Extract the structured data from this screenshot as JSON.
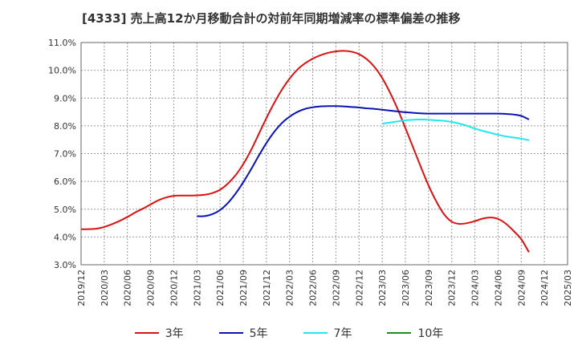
{
  "chart_data": {
    "type": "line",
    "title": "[4333]  売上高12か月移動合計の対前年同期増減率の標準偏差の推移",
    "ylim": [
      3.0,
      11.0
    ],
    "yticks": [
      "3.0%",
      "4.0%",
      "5.0%",
      "6.0%",
      "7.0%",
      "8.0%",
      "9.0%",
      "10.0%",
      "11.0%"
    ],
    "xticks": [
      "2019/12",
      "2020/03",
      "2020/06",
      "2020/09",
      "2020/12",
      "2021/03",
      "2021/06",
      "2021/09",
      "2021/12",
      "2022/03",
      "2022/06",
      "2022/09",
      "2022/12",
      "2023/03",
      "2023/06",
      "2023/09",
      "2023/12",
      "2024/03",
      "2024/06",
      "2024/09",
      "2024/12",
      "2025/03"
    ],
    "grid": true,
    "legend_position": "bottom",
    "series": [
      {
        "name": "3年",
        "color": "#dd1111",
        "values": [
          [
            "2019/12",
            4.28
          ],
          [
            "2020/01",
            4.28
          ],
          [
            "2020/02",
            4.3
          ],
          [
            "2020/03",
            4.36
          ],
          [
            "2020/04",
            4.46
          ],
          [
            "2020/05",
            4.58
          ],
          [
            "2020/06",
            4.72
          ],
          [
            "2020/07",
            4.88
          ],
          [
            "2020/08",
            5.02
          ],
          [
            "2020/09",
            5.17
          ],
          [
            "2020/10",
            5.32
          ],
          [
            "2020/11",
            5.42
          ],
          [
            "2020/12",
            5.48
          ],
          [
            "2021/01",
            5.49
          ],
          [
            "2021/02",
            5.49
          ],
          [
            "2021/03",
            5.5
          ],
          [
            "2021/04",
            5.52
          ],
          [
            "2021/05",
            5.58
          ],
          [
            "2021/06",
            5.7
          ],
          [
            "2021/07",
            5.92
          ],
          [
            "2021/08",
            6.22
          ],
          [
            "2021/09",
            6.62
          ],
          [
            "2021/10",
            7.12
          ],
          [
            "2021/11",
            7.7
          ],
          [
            "2021/12",
            8.28
          ],
          [
            "2022/01",
            8.82
          ],
          [
            "2022/02",
            9.3
          ],
          [
            "2022/03",
            9.7
          ],
          [
            "2022/04",
            10.02
          ],
          [
            "2022/05",
            10.25
          ],
          [
            "2022/06",
            10.42
          ],
          [
            "2022/07",
            10.54
          ],
          [
            "2022/08",
            10.63
          ],
          [
            "2022/09",
            10.68
          ],
          [
            "2022/10",
            10.7
          ],
          [
            "2022/11",
            10.67
          ],
          [
            "2022/12",
            10.58
          ],
          [
            "2023/01",
            10.4
          ],
          [
            "2023/02",
            10.12
          ],
          [
            "2023/03",
            9.72
          ],
          [
            "2023/04",
            9.2
          ],
          [
            "2023/05",
            8.6
          ],
          [
            "2023/06",
            7.92
          ],
          [
            "2023/07",
            7.22
          ],
          [
            "2023/08",
            6.52
          ],
          [
            "2023/09",
            5.85
          ],
          [
            "2023/10",
            5.28
          ],
          [
            "2023/11",
            4.82
          ],
          [
            "2023/12",
            4.55
          ],
          [
            "2024/01",
            4.47
          ],
          [
            "2024/02",
            4.5
          ],
          [
            "2024/03",
            4.57
          ],
          [
            "2024/04",
            4.66
          ],
          [
            "2024/05",
            4.7
          ],
          [
            "2024/06",
            4.65
          ],
          [
            "2024/07",
            4.48
          ],
          [
            "2024/08",
            4.22
          ],
          [
            "2024/09",
            3.92
          ],
          [
            "2024/10",
            3.45
          ]
        ]
      },
      {
        "name": "5年",
        "color": "#0a14b4",
        "values": [
          [
            "2021/03",
            4.75
          ],
          [
            "2021/04",
            4.75
          ],
          [
            "2021/05",
            4.82
          ],
          [
            "2021/06",
            4.97
          ],
          [
            "2021/07",
            5.22
          ],
          [
            "2021/08",
            5.56
          ],
          [
            "2021/09",
            5.97
          ],
          [
            "2021/10",
            6.43
          ],
          [
            "2021/11",
            6.92
          ],
          [
            "2021/12",
            7.38
          ],
          [
            "2022/01",
            7.78
          ],
          [
            "2022/02",
            8.1
          ],
          [
            "2022/03",
            8.33
          ],
          [
            "2022/04",
            8.5
          ],
          [
            "2022/05",
            8.61
          ],
          [
            "2022/06",
            8.67
          ],
          [
            "2022/07",
            8.7
          ],
          [
            "2022/08",
            8.71
          ],
          [
            "2022/09",
            8.71
          ],
          [
            "2022/10",
            8.7
          ],
          [
            "2022/11",
            8.68
          ],
          [
            "2022/12",
            8.66
          ],
          [
            "2023/01",
            8.63
          ],
          [
            "2023/02",
            8.61
          ],
          [
            "2023/03",
            8.58
          ],
          [
            "2023/04",
            8.55
          ],
          [
            "2023/05",
            8.52
          ],
          [
            "2023/06",
            8.49
          ],
          [
            "2023/07",
            8.47
          ],
          [
            "2023/08",
            8.45
          ],
          [
            "2023/09",
            8.44
          ],
          [
            "2023/10",
            8.44
          ],
          [
            "2023/11",
            8.44
          ],
          [
            "2023/12",
            8.44
          ],
          [
            "2024/01",
            8.44
          ],
          [
            "2024/02",
            8.44
          ],
          [
            "2024/03",
            8.44
          ],
          [
            "2024/04",
            8.44
          ],
          [
            "2024/05",
            8.44
          ],
          [
            "2024/06",
            8.44
          ],
          [
            "2024/07",
            8.43
          ],
          [
            "2024/08",
            8.41
          ],
          [
            "2024/09",
            8.36
          ],
          [
            "2024/10",
            8.23
          ]
        ]
      },
      {
        "name": "7年",
        "color": "#22e6f0",
        "values": [
          [
            "2023/03",
            8.08
          ],
          [
            "2023/04",
            8.12
          ],
          [
            "2023/05",
            8.16
          ],
          [
            "2023/06",
            8.2
          ],
          [
            "2023/07",
            8.22
          ],
          [
            "2023/08",
            8.23
          ],
          [
            "2023/09",
            8.22
          ],
          [
            "2023/10",
            8.2
          ],
          [
            "2023/11",
            8.18
          ],
          [
            "2023/12",
            8.14
          ],
          [
            "2024/01",
            8.08
          ],
          [
            "2024/02",
            8.0
          ],
          [
            "2024/03",
            7.9
          ],
          [
            "2024/04",
            7.82
          ],
          [
            "2024/05",
            7.75
          ],
          [
            "2024/06",
            7.68
          ],
          [
            "2024/07",
            7.62
          ],
          [
            "2024/08",
            7.58
          ],
          [
            "2024/09",
            7.54
          ],
          [
            "2024/10",
            7.48
          ]
        ]
      },
      {
        "name": "10年",
        "color": "#1e8c1e",
        "values": []
      }
    ]
  }
}
